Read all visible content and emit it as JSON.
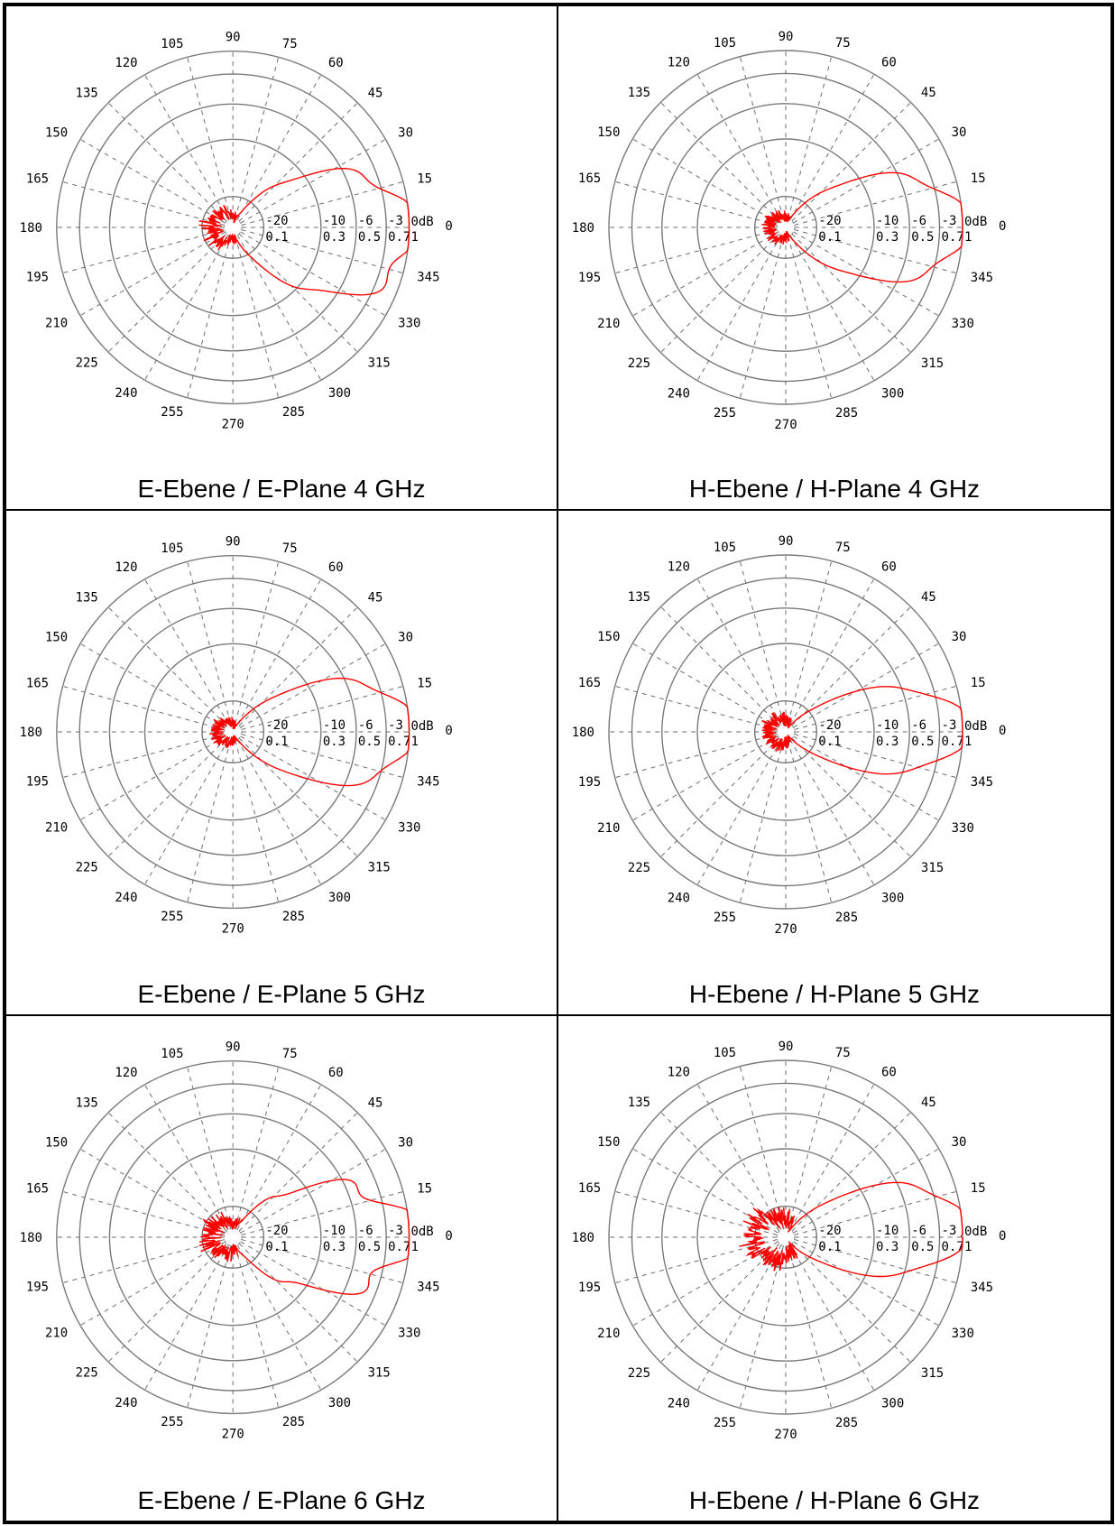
{
  "chart_data": [
    {
      "type": "polar",
      "caption": "E-Ebene / E-Plane 4 GHz",
      "angle_labels": [
        "0dB",
        "15",
        "30",
        "45",
        "60",
        "75",
        "90",
        "105",
        "120",
        "135",
        "150",
        "165",
        "180",
        "195",
        "210",
        "225",
        "240",
        "255",
        "270",
        "285",
        "300",
        "315",
        "330",
        "345"
      ],
      "ring_labels": [
        {
          "db": "-20",
          "lin": "0.1"
        },
        {
          "db": "-10",
          "lin": "0.3"
        },
        {
          "db": "-6",
          "lin": "0.5"
        },
        {
          "db": "-3",
          "lin": "0.7"
        },
        {
          "db": "0dB",
          "lin": "1"
        }
      ],
      "pattern": {
        "main_angle": -3,
        "width": 46,
        "shape": 2.4,
        "back": 0.14,
        "back_spread": 90,
        "noise": 0.06,
        "ripple": 0.05
      }
    },
    {
      "type": "polar",
      "caption": "H-Ebene / H-Plane 4 GHz",
      "angle_labels": [
        "0dB",
        "15",
        "30",
        "45",
        "60",
        "75",
        "90",
        "105",
        "120",
        "135",
        "150",
        "165",
        "180",
        "195",
        "210",
        "225",
        "240",
        "255",
        "270",
        "285",
        "300",
        "315",
        "330",
        "345"
      ],
      "ring_labels": [
        {
          "db": "-20",
          "lin": "0.1"
        },
        {
          "db": "-10",
          "lin": "0.3"
        },
        {
          "db": "-6",
          "lin": "0.5"
        },
        {
          "db": "-3",
          "lin": "0.7"
        },
        {
          "db": "0dB",
          "lin": "1"
        }
      ],
      "pattern": {
        "main_angle": 0,
        "width": 40,
        "shape": 2.2,
        "back": 0.1,
        "back_spread": 100,
        "noise": 0.05,
        "ripple": 0.04
      }
    },
    {
      "type": "polar",
      "caption": "E-Ebene / E-Plane 5 GHz",
      "angle_labels": [
        "0dB",
        "15",
        "30",
        "45",
        "60",
        "75",
        "90",
        "105",
        "120",
        "135",
        "150",
        "165",
        "180",
        "195",
        "210",
        "225",
        "240",
        "255",
        "270",
        "285",
        "300",
        "315",
        "330",
        "345"
      ],
      "ring_labels": [
        {
          "db": "-20",
          "lin": "0.1"
        },
        {
          "db": "-10",
          "lin": "0.3"
        },
        {
          "db": "-6",
          "lin": "0.5"
        },
        {
          "db": "-3",
          "lin": "0.7"
        },
        {
          "db": "0dB",
          "lin": "1"
        }
      ],
      "pattern": {
        "main_angle": 0,
        "width": 38,
        "shape": 2.4,
        "back": 0.1,
        "back_spread": 90,
        "noise": 0.05,
        "ripple": 0.04
      }
    },
    {
      "type": "polar",
      "caption": "H-Ebene / H-Plane 5 GHz",
      "angle_labels": [
        "0dB",
        "15",
        "30",
        "45",
        "60",
        "75",
        "90",
        "105",
        "120",
        "135",
        "150",
        "165",
        "180",
        "195",
        "210",
        "225",
        "240",
        "255",
        "270",
        "285",
        "300",
        "315",
        "330",
        "345"
      ],
      "ring_labels": [
        {
          "db": "-20",
          "lin": "0.1"
        },
        {
          "db": "-10",
          "lin": "0.3"
        },
        {
          "db": "-6",
          "lin": "0.5"
        },
        {
          "db": "-3",
          "lin": "0.7"
        },
        {
          "db": "0dB",
          "lin": "1"
        }
      ],
      "pattern": {
        "main_angle": 1,
        "width": 32,
        "shape": 2.2,
        "back": 0.1,
        "back_spread": 110,
        "noise": 0.06,
        "ripple": 0.04
      }
    },
    {
      "type": "polar",
      "caption": "E-Ebene / E-Plane 6 GHz",
      "angle_labels": [
        "0dB",
        "15",
        "30",
        "45",
        "60",
        "75",
        "90",
        "105",
        "120",
        "135",
        "150",
        "165",
        "180",
        "195",
        "210",
        "225",
        "240",
        "255",
        "270",
        "285",
        "300",
        "315",
        "330",
        "345"
      ],
      "ring_labels": [
        {
          "db": "-20",
          "lin": "0.1"
        },
        {
          "db": "-10",
          "lin": "0.3"
        },
        {
          "db": "-6",
          "lin": "0.5"
        },
        {
          "db": "-3",
          "lin": "0.7"
        },
        {
          "db": "0dB",
          "lin": "1"
        }
      ],
      "pattern": {
        "main_angle": 0,
        "width": 42,
        "shape": 2.0,
        "back": 0.14,
        "back_spread": 100,
        "noise": 0.08,
        "ripple": 0.09
      }
    },
    {
      "type": "polar",
      "caption": "H-Ebene / H-Plane 6 GHz",
      "angle_labels": [
        "0dB",
        "15",
        "30",
        "45",
        "60",
        "75",
        "90",
        "105",
        "120",
        "135",
        "150",
        "165",
        "180",
        "195",
        "210",
        "225",
        "240",
        "255",
        "270",
        "285",
        "300",
        "315",
        "330",
        "345"
      ],
      "ring_labels": [
        {
          "db": "-20",
          "lin": "0.1"
        },
        {
          "db": "-10",
          "lin": "0.3"
        },
        {
          "db": "-6",
          "lin": "0.5"
        },
        {
          "db": "-3",
          "lin": "0.7"
        },
        {
          "db": "0dB",
          "lin": "1"
        }
      ],
      "pattern": {
        "main_angle": 4,
        "width": 34,
        "shape": 2.2,
        "back": 0.2,
        "back_spread": 100,
        "noise": 0.1,
        "ripple": 0.04
      }
    }
  ],
  "colors": {
    "trace": "#ff0000",
    "grid": "#7a7a7a",
    "border": "#000000"
  }
}
